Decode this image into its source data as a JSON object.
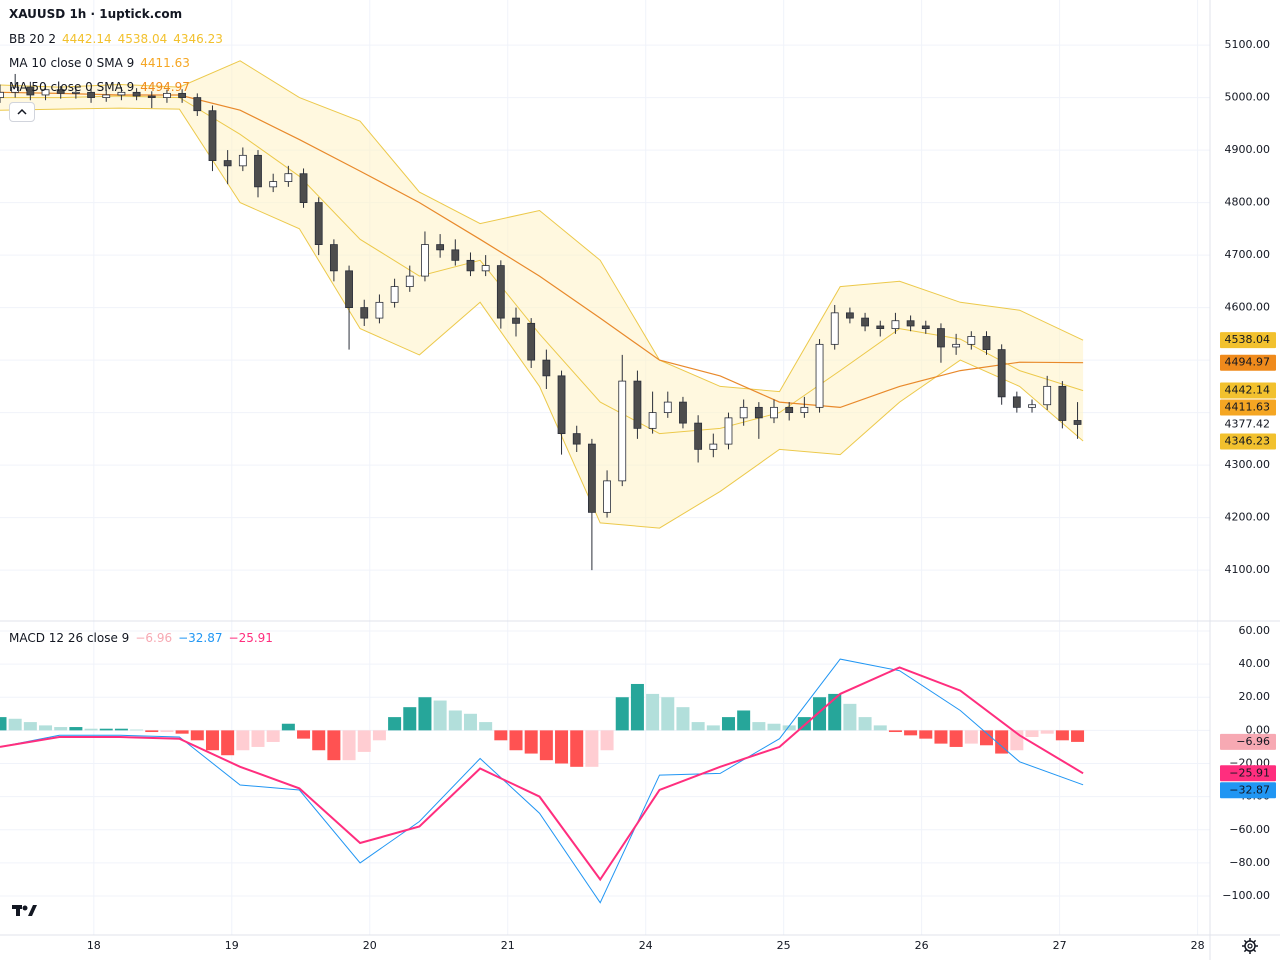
{
  "chart_data": {
    "type": "candlestick",
    "title": "XAUUSD 1h · 1uptick.com",
    "x": [
      -0.68,
      -0.57,
      -0.46,
      -0.35,
      -0.24,
      -0.13,
      -0.02,
      0.09,
      0.2,
      0.31,
      0.42,
      0.53,
      0.64,
      0.75,
      0.86,
      0.97,
      1.08,
      1.19,
      1.3,
      1.41,
      1.52,
      1.63,
      1.74,
      1.85,
      1.96,
      2.07,
      2.18,
      2.29,
      2.4,
      2.51,
      2.62,
      2.73,
      2.84,
      2.95,
      3.06,
      3.17,
      3.28,
      3.39,
      3.5,
      3.61,
      3.72,
      3.83,
      3.94,
      4.05,
      4.16,
      4.27,
      4.38,
      4.49,
      4.6,
      4.71,
      4.82,
      4.93,
      5.04,
      5.15,
      5.26,
      5.37,
      5.48,
      5.59,
      5.7,
      5.81,
      5.92,
      6.03,
      6.14,
      6.25,
      6.36,
      6.47,
      6.58,
      6.69,
      6.8,
      6.91,
      7.02,
      7.13
    ],
    "open": [
      5000,
      5010,
      5020,
      5005,
      5015,
      5008,
      5010,
      5000,
      5005,
      5010,
      5003,
      5000,
      5008,
      5000,
      4975,
      4880,
      4870,
      4890,
      4830,
      4840,
      4855,
      4800,
      4720,
      4670,
      4600,
      4580,
      4610,
      4640,
      4660,
      4720,
      4710,
      4690,
      4670,
      4680,
      4580,
      4570,
      4500,
      4470,
      4360,
      4340,
      4210,
      4270,
      4460,
      4370,
      4400,
      4420,
      4380,
      4330,
      4340,
      4390,
      4410,
      4390,
      4410,
      4400,
      4410,
      4530,
      4590,
      4580,
      4565,
      4560,
      4575,
      4565,
      4560,
      4525,
      4530,
      4545,
      4520,
      4430,
      4410,
      4415,
      4450,
      4385
    ],
    "high": [
      5025,
      5045,
      5030,
      5025,
      5022,
      5020,
      5018,
      5015,
      5020,
      5018,
      5012,
      5015,
      5016,
      5008,
      4985,
      4900,
      4905,
      4900,
      4855,
      4870,
      4865,
      4810,
      4730,
      4680,
      4615,
      4625,
      4655,
      4680,
      4745,
      4740,
      4730,
      4705,
      4700,
      4690,
      4600,
      4580,
      4520,
      4480,
      4375,
      4350,
      4290,
      4510,
      4480,
      4440,
      4440,
      4430,
      4395,
      4360,
      4400,
      4425,
      4420,
      4425,
      4420,
      4430,
      4540,
      4605,
      4600,
      4590,
      4575,
      4590,
      4585,
      4575,
      4570,
      4550,
      4555,
      4555,
      4530,
      4440,
      4425,
      4470,
      4460,
      4420
    ],
    "low": [
      4990,
      5000,
      4995,
      4995,
      4998,
      4998,
      4990,
      4992,
      4995,
      4995,
      4980,
      4990,
      4990,
      4965,
      4860,
      4835,
      4860,
      4810,
      4820,
      4830,
      4790,
      4700,
      4650,
      4520,
      4565,
      4570,
      4600,
      4630,
      4650,
      4695,
      4680,
      4660,
      4660,
      4560,
      4545,
      4485,
      4445,
      4320,
      4325,
      4100,
      4200,
      4260,
      4350,
      4360,
      4390,
      4370,
      4305,
      4315,
      4330,
      4375,
      4350,
      4380,
      4385,
      4390,
      4400,
      4520,
      4570,
      4555,
      4545,
      4550,
      4555,
      4550,
      4495,
      4510,
      4520,
      4510,
      4415,
      4400,
      4400,
      4405,
      4370,
      4350
    ],
    "close": [
      5010,
      5020,
      5005,
      5015,
      5008,
      5010,
      5000,
      5005,
      5010,
      5003,
      5000,
      5008,
      5000,
      4975,
      4880,
      4870,
      4890,
      4830,
      4840,
      4855,
      4800,
      4720,
      4670,
      4600,
      4580,
      4610,
      4640,
      4660,
      4720,
      4710,
      4690,
      4670,
      4680,
      4580,
      4570,
      4500,
      4470,
      4360,
      4340,
      4210,
      4270,
      4460,
      4370,
      4400,
      4420,
      4380,
      4330,
      4340,
      4390,
      4410,
      4390,
      4410,
      4400,
      4410,
      4530,
      4590,
      4580,
      4565,
      4560,
      4575,
      4565,
      4560,
      4525,
      4530,
      4545,
      4520,
      4430,
      4410,
      4415,
      4450,
      4385,
      4377.42
    ],
    "up_color": "#ffffff",
    "down_color": "#4d4d4d",
    "xlim": [
      -0.68,
      8.09
    ],
    "xticks": [
      {
        "value": 0,
        "label": "18"
      },
      {
        "value": 1,
        "label": "19"
      },
      {
        "value": 2,
        "label": "20"
      },
      {
        "value": 3,
        "label": "21"
      },
      {
        "value": 4,
        "label": "24"
      },
      {
        "value": 5,
        "label": "25"
      },
      {
        "value": 6,
        "label": "26"
      },
      {
        "value": 7,
        "label": "27"
      },
      {
        "value": 8,
        "label": "28"
      }
    ],
    "ylim": [
      4005,
      5123
    ],
    "yticks": [
      {
        "value": 4100,
        "label": "4100.00"
      },
      {
        "value": 4200,
        "label": "4200.00"
      },
      {
        "value": 4300,
        "label": "4300.00"
      },
      {
        "value": 4400,
        "label": "4400.00"
      },
      {
        "value": 4500,
        "label": "4500.00"
      },
      {
        "value": 4600,
        "label": "4600.00"
      },
      {
        "value": 4700,
        "label": "4700.00"
      },
      {
        "value": 4800,
        "label": "4800.00"
      },
      {
        "value": 4900,
        "label": "4900.00"
      },
      {
        "value": 5000,
        "label": "5000.00"
      },
      {
        "value": 5100,
        "label": "5100.00"
      }
    ],
    "grid": true,
    "indicators": [
      {
        "name": "BB 20 2",
        "color": "#f2c12e",
        "values": [
          4442.14,
          4538.04,
          4346.23
        ]
      },
      {
        "name": "MA 10 close 0 SMA 9",
        "color": "#f5a623",
        "values": [
          4411.63
        ]
      },
      {
        "name": "MA 50 close 0 SMA 9",
        "color": "#ef8a1c",
        "values": [
          4494.97
        ]
      }
    ],
    "last_price": 4377.42,
    "line_x": [
      -0.68,
      -0.25,
      0.19,
      0.62,
      1.06,
      1.49,
      1.93,
      2.36,
      2.8,
      3.23,
      3.67,
      4.1,
      4.54,
      4.97,
      5.41,
      5.84,
      6.28,
      6.71,
      7.17
    ],
    "bands": {
      "color": "#ecc94b",
      "fill": "#fff3c4",
      "upper": [
        5024,
        5020,
        5025,
        5020,
        5070,
        5000,
        4955,
        4820,
        4760,
        4785,
        4690,
        4500,
        4450,
        4440,
        4640,
        4650,
        4610,
        4595,
        4538
      ],
      "basis": [
        5000,
        5000,
        5003,
        5000,
        4930,
        4850,
        4730,
        4660,
        4690,
        4550,
        4420,
        4360,
        4370,
        4400,
        4480,
        4560,
        4540,
        4480,
        4442
      ],
      "lower": [
        4976,
        4978,
        4980,
        4978,
        4800,
        4750,
        4560,
        4510,
        4610,
        4450,
        4190,
        4180,
        4250,
        4330,
        4320,
        4420,
        4500,
        4450,
        4346
      ]
    },
    "ma50": {
      "color": "#e8892b",
      "values": [
        5010,
        5008,
        5005,
        5005,
        4976,
        4920,
        4860,
        4800,
        4730,
        4660,
        4580,
        4500,
        4470,
        4420,
        4410,
        4450,
        4480,
        4496,
        4495
      ]
    },
    "macd": {
      "name": "MACD 12 26 close 9",
      "values": [
        -6.96,
        -32.87,
        -25.91
      ],
      "value_labels": [
        "−6.96",
        "−32.87",
        "−25.91"
      ],
      "colors": [
        "#f7a9b3",
        "#2196f3",
        "#ff2e7e"
      ],
      "hist_colors": [
        "#26a69a",
        "#b2dfdb",
        "#ffcdd2",
        "#ff5252"
      ],
      "ylim": [
        -123.5,
        65.4
      ],
      "yticks": [
        {
          "value": 60,
          "label": "60.00"
        },
        {
          "value": 40,
          "label": "40.00"
        },
        {
          "value": 20,
          "label": "20.00"
        },
        {
          "value": 0,
          "label": "0.00"
        },
        {
          "value": -20,
          "label": "−20.00"
        },
        {
          "value": -40,
          "label": "−40.00"
        },
        {
          "value": -60,
          "label": "−60.00"
        },
        {
          "value": -80,
          "label": "−80.00"
        },
        {
          "value": -100,
          "label": "−100.00"
        }
      ],
      "histogram": [
        8,
        7,
        5,
        3,
        2,
        2,
        1,
        1,
        1,
        0.5,
        -1,
        -1,
        -2,
        -6,
        -12,
        -15,
        -12,
        -10,
        -7,
        4,
        -5,
        -12,
        -18,
        -18,
        -13,
        -6,
        8,
        14,
        20,
        18,
        12,
        10,
        5,
        -6,
        -12,
        -14,
        -18,
        -20,
        -22,
        -22,
        -12,
        20,
        28,
        22,
        20,
        14,
        5,
        3,
        8,
        12,
        5,
        4,
        3,
        8,
        20,
        22,
        16,
        8,
        3,
        -1,
        -3,
        -5,
        -8,
        -10,
        -8,
        -9,
        -14,
        -12,
        -4,
        -2,
        -6,
        -6.96
      ],
      "macd_line": [
        -10,
        -3,
        -3,
        -4,
        -33,
        -36,
        -80,
        -55,
        -17,
        -50,
        -104,
        -27,
        -26,
        -5,
        43,
        36,
        12,
        -19,
        -32.87
      ],
      "signal_line": [
        -10,
        -4,
        -4,
        -5,
        -22,
        -35,
        -68,
        -58,
        -23,
        -40,
        -90,
        -36,
        -22,
        -10,
        22,
        38,
        24,
        -3,
        -25.91
      ]
    }
  }
}
